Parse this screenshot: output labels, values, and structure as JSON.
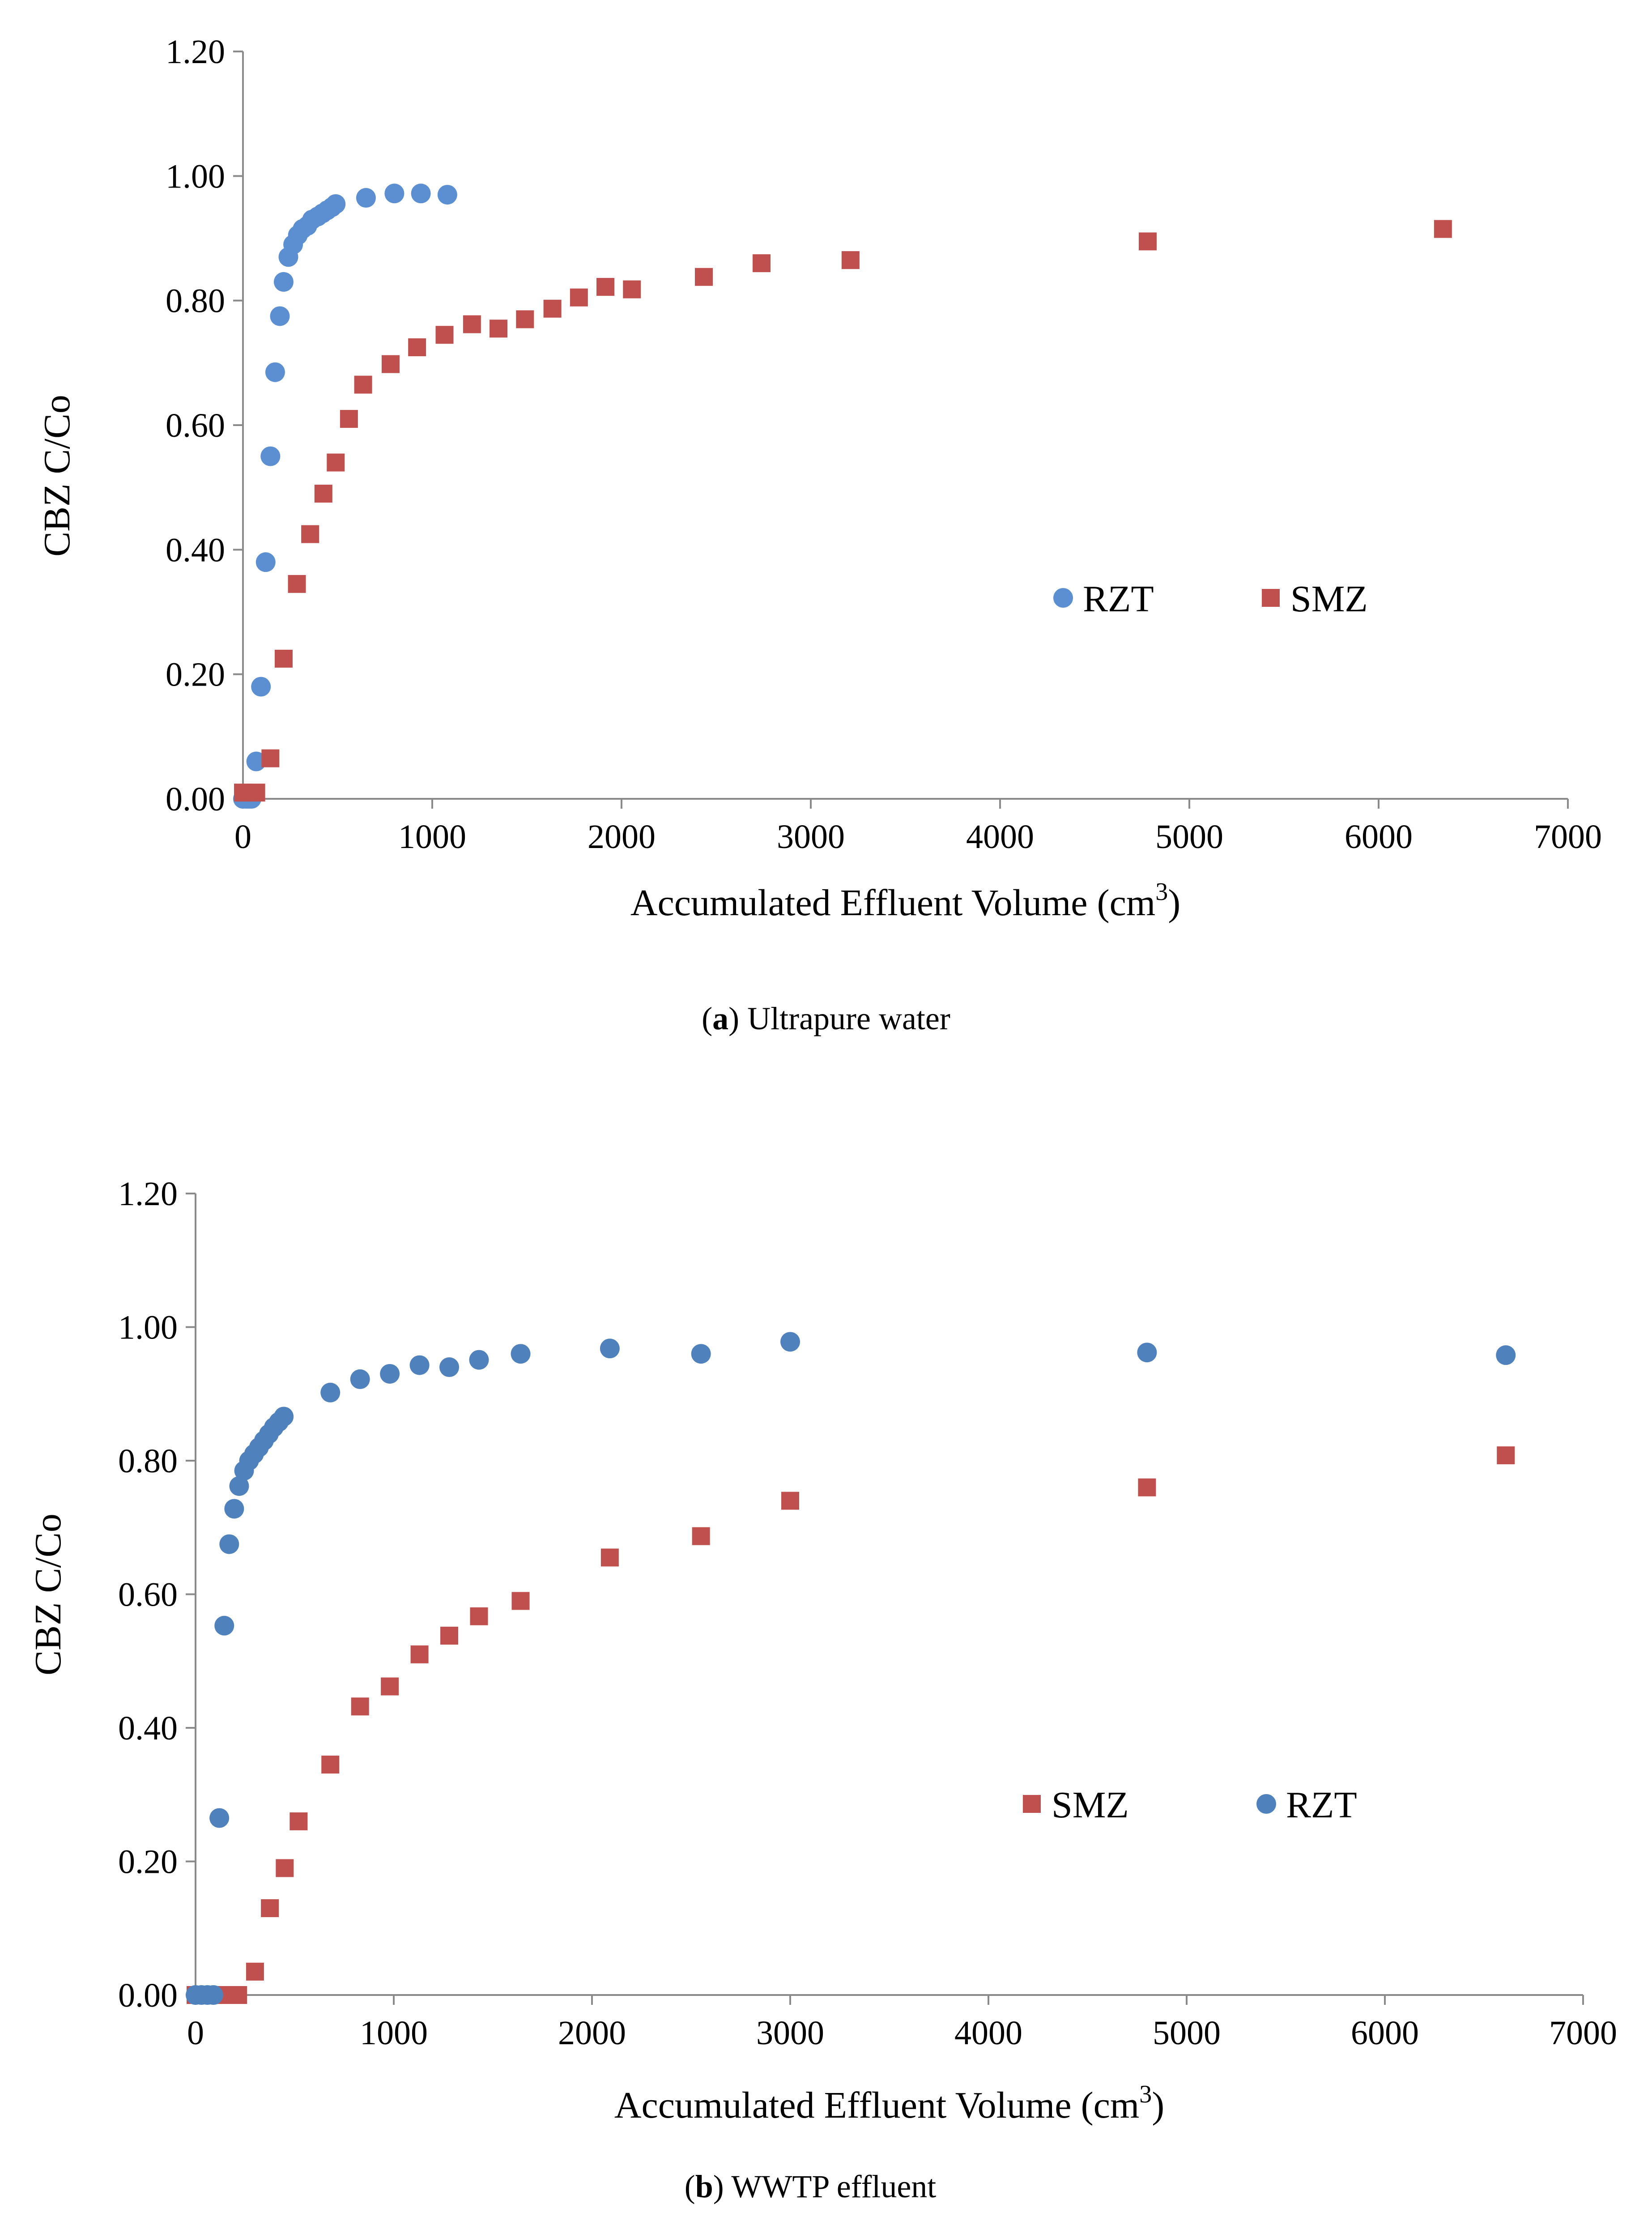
{
  "chart_data": [
    {
      "type": "scatter",
      "title": "",
      "xlabel": "Accumulated Effluent  Volume (cm",
      "xlabel_sup": "3",
      "xlabel_end": ")",
      "ylabel": "CBZ C/Co",
      "xlim": [
        0,
        7000
      ],
      "ylim": [
        0,
        1.2
      ],
      "x_ticks": [
        "0",
        "1000",
        "2000",
        "3000",
        "4000",
        "5000",
        "6000",
        "7000"
      ],
      "y_ticks": [
        "0.00",
        "0.20",
        "0.40",
        "0.60",
        "0.80",
        "1.00",
        "1.20"
      ],
      "grid": false,
      "legend_position": "center-right",
      "caption": {
        "label": "a",
        "text": " Ultrapure water"
      },
      "series": [
        {
          "name": "RZT",
          "marker": "circle",
          "color": "#5B8FD1",
          "points": [
            [
              0,
              0.0
            ],
            [
              15,
              0.0
            ],
            [
              25,
              0.0
            ],
            [
              35,
              0.0
            ],
            [
              45,
              0.0
            ],
            [
              70,
              0.06
            ],
            [
              95,
              0.18
            ],
            [
              120,
              0.38
            ],
            [
              145,
              0.55
            ],
            [
              170,
              0.685
            ],
            [
              195,
              0.775
            ],
            [
              215,
              0.83
            ],
            [
              240,
              0.87
            ],
            [
              265,
              0.89
            ],
            [
              290,
              0.905
            ],
            [
              315,
              0.915
            ],
            [
              340,
              0.92
            ],
            [
              365,
              0.93
            ],
            [
              395,
              0.935
            ],
            [
              420,
              0.94
            ],
            [
              445,
              0.945
            ],
            [
              470,
              0.95
            ],
            [
              490,
              0.955
            ],
            [
              650,
              0.965
            ],
            [
              800,
              0.972
            ],
            [
              940,
              0.972
            ],
            [
              1080,
              0.97
            ]
          ]
        },
        {
          "name": "SMZ",
          "marker": "square",
          "color": "#C0504D",
          "points": [
            [
              0,
              0.01
            ],
            [
              70,
              0.01
            ],
            [
              145,
              0.065
            ],
            [
              215,
              0.225
            ],
            [
              285,
              0.345
            ],
            [
              355,
              0.425
            ],
            [
              425,
              0.49
            ],
            [
              490,
              0.54
            ],
            [
              560,
              0.61
            ],
            [
              635,
              0.665
            ],
            [
              780,
              0.698
            ],
            [
              920,
              0.725
            ],
            [
              1065,
              0.745
            ],
            [
              1210,
              0.762
            ],
            [
              1350,
              0.755
            ],
            [
              1490,
              0.77
            ],
            [
              1635,
              0.787
            ],
            [
              1775,
              0.805
            ],
            [
              1915,
              0.822
            ],
            [
              2055,
              0.818
            ],
            [
              2435,
              0.838
            ],
            [
              2740,
              0.86
            ],
            [
              3210,
              0.865
            ],
            [
              4780,
              0.895
            ],
            [
              6340,
              0.915
            ]
          ]
        }
      ]
    },
    {
      "type": "scatter",
      "title": "",
      "xlabel": "Accumulated Effluent Volume (cm",
      "xlabel_sup": "3",
      "xlabel_end": ")",
      "ylabel": "CBZ C/Co",
      "xlim": [
        0,
        7000
      ],
      "ylim": [
        0,
        1.2
      ],
      "x_ticks": [
        "0",
        "1000",
        "2000",
        "3000",
        "4000",
        "5000",
        "6000",
        "7000"
      ],
      "y_ticks": [
        "0.00",
        "0.20",
        "0.40",
        "0.60",
        "0.80",
        "1.00",
        "1.20"
      ],
      "grid": false,
      "legend_position": "center-right",
      "caption": {
        "label": "b",
        "text": " WWTP effluent"
      },
      "series": [
        {
          "name": "SMZ",
          "marker": "square",
          "color": "#C0504D",
          "points": [
            [
              0,
              0.0
            ],
            [
              70,
              0.0
            ],
            [
              145,
              0.0
            ],
            [
              215,
              0.0
            ],
            [
              300,
              0.035
            ],
            [
              375,
              0.13
            ],
            [
              450,
              0.19
            ],
            [
              520,
              0.26
            ],
            [
              680,
              0.345
            ],
            [
              830,
              0.432
            ],
            [
              980,
              0.462
            ],
            [
              1130,
              0.51
            ],
            [
              1280,
              0.538
            ],
            [
              1430,
              0.567
            ],
            [
              1640,
              0.59
            ],
            [
              2090,
              0.655
            ],
            [
              2550,
              0.687
            ],
            [
              3000,
              0.74
            ],
            [
              4800,
              0.76
            ],
            [
              6610,
              0.808
            ]
          ]
        },
        {
          "name": "RZT",
          "marker": "circle",
          "color": "#4F81BD",
          "points": [
            [
              0,
              0.0
            ],
            [
              30,
              0.0
            ],
            [
              60,
              0.0
            ],
            [
              90,
              0.0
            ],
            [
              120,
              0.265
            ],
            [
              145,
              0.553
            ],
            [
              170,
              0.675
            ],
            [
              195,
              0.728
            ],
            [
              220,
              0.762
            ],
            [
              245,
              0.785
            ],
            [
              270,
              0.8
            ],
            [
              295,
              0.81
            ],
            [
              320,
              0.82
            ],
            [
              345,
              0.83
            ],
            [
              370,
              0.84
            ],
            [
              395,
              0.85
            ],
            [
              420,
              0.858
            ],
            [
              445,
              0.866
            ],
            [
              680,
              0.902
            ],
            [
              830,
              0.922
            ],
            [
              980,
              0.93
            ],
            [
              1130,
              0.943
            ],
            [
              1280,
              0.94
            ],
            [
              1430,
              0.951
            ],
            [
              1640,
              0.96
            ],
            [
              2090,
              0.968
            ],
            [
              2550,
              0.96
            ],
            [
              3000,
              0.978
            ],
            [
              4800,
              0.962
            ],
            [
              6610,
              0.958
            ]
          ]
        }
      ]
    }
  ]
}
